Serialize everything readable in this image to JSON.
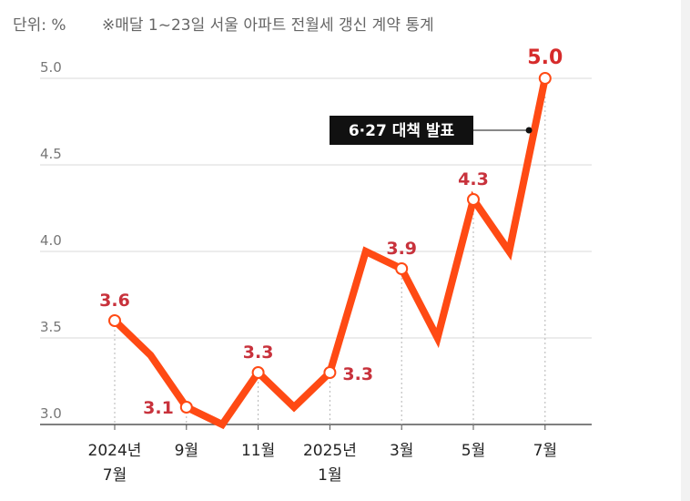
{
  "header": {
    "unit_label": "단위: %",
    "description": "※매달 1~23일 서울 아파트 전월세 갱신 계약 통계"
  },
  "colors": {
    "line": "#FF4A14",
    "data_label": "#C8323C",
    "last_label": "#D62B2B",
    "grid": "#d9d9d9",
    "annotation_bg": "#111111"
  },
  "chart_data": {
    "type": "line",
    "x": [
      "2024-07",
      "2024-08",
      "2024-09",
      "2024-10",
      "2024-11",
      "2024-12",
      "2025-01",
      "2025-02",
      "2025-03",
      "2025-04",
      "2025-05",
      "2025-06",
      "2025-07"
    ],
    "values": [
      3.6,
      3.4,
      3.1,
      3.0,
      3.3,
      3.1,
      3.3,
      4.0,
      3.9,
      3.5,
      4.3,
      4.0,
      5.0
    ],
    "ylim": [
      3.0,
      5.0
    ],
    "yticks": [
      "3.0",
      "3.5",
      "4.0",
      "4.5",
      "5.0"
    ],
    "xticks": [
      {
        "index": 0,
        "lines": [
          "2024년",
          "7월"
        ]
      },
      {
        "index": 2,
        "lines": [
          "9월"
        ]
      },
      {
        "index": 4,
        "lines": [
          "11월"
        ]
      },
      {
        "index": 6,
        "lines": [
          "2025년",
          "1월"
        ]
      },
      {
        "index": 8,
        "lines": [
          "3월"
        ]
      },
      {
        "index": 10,
        "lines": [
          "5월"
        ]
      },
      {
        "index": 12,
        "lines": [
          "7월"
        ]
      }
    ],
    "point_labels": [
      {
        "index": 0,
        "text": "3.6",
        "pos": "above"
      },
      {
        "index": 2,
        "text": "3.1",
        "pos": "left"
      },
      {
        "index": 4,
        "text": "3.3",
        "pos": "above"
      },
      {
        "index": 6,
        "text": "3.3",
        "pos": "right"
      },
      {
        "index": 8,
        "text": "3.9",
        "pos": "above"
      },
      {
        "index": 10,
        "text": "4.3",
        "pos": "above"
      },
      {
        "index": 12,
        "text": "5.0",
        "pos": "above"
      }
    ],
    "annotation": {
      "text": "6·27 대책 발표",
      "x_index": 11.55,
      "y_value": 4.7
    },
    "grid": true,
    "legend": "none"
  }
}
